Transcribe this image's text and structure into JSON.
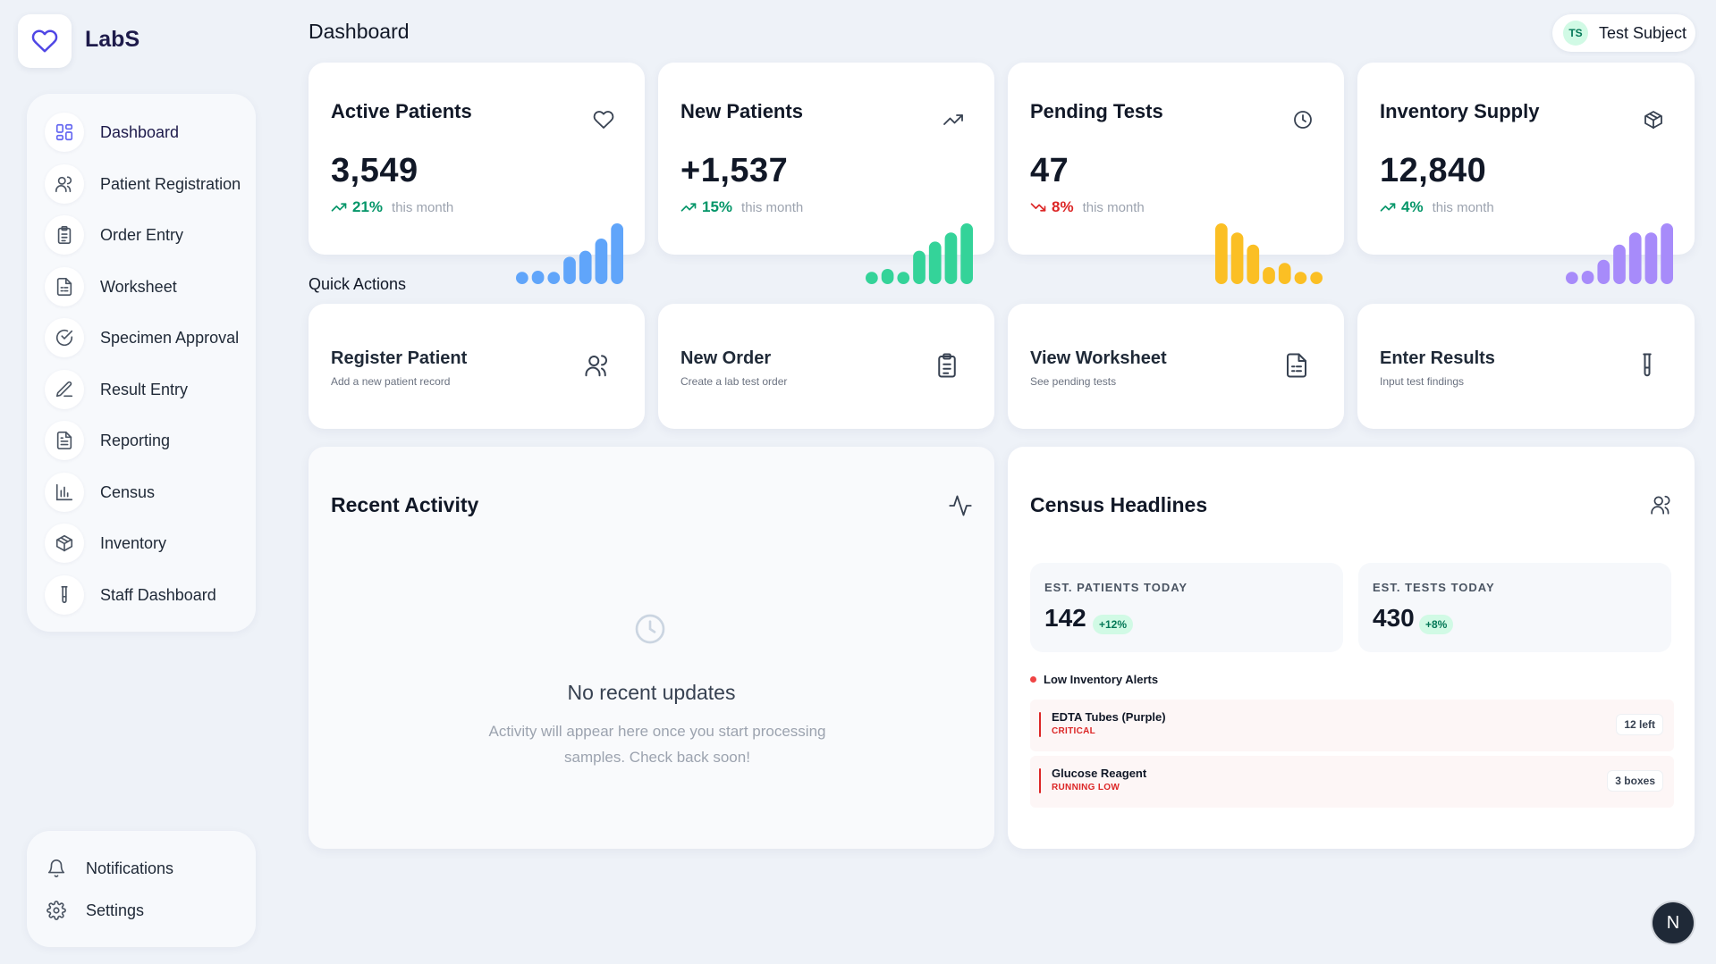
{
  "app": {
    "name": "LabS",
    "logo_icon": "heart-icon"
  },
  "page": {
    "title": "Dashboard"
  },
  "user": {
    "initials": "TS",
    "name": "Test Subject"
  },
  "sidebar": {
    "items": [
      {
        "label": "Dashboard",
        "icon": "grid-icon",
        "active": true
      },
      {
        "label": "Patient Registration",
        "icon": "users-icon"
      },
      {
        "label": "Order Entry",
        "icon": "clipboard-icon"
      },
      {
        "label": "Worksheet",
        "icon": "document-icon"
      },
      {
        "label": "Specimen Approval",
        "icon": "check-circle-icon"
      },
      {
        "label": "Result Entry",
        "icon": "pen-icon"
      },
      {
        "label": "Reporting",
        "icon": "report-icon"
      },
      {
        "label": "Census",
        "icon": "bar-chart-icon"
      },
      {
        "label": "Inventory",
        "icon": "box-icon"
      },
      {
        "label": "Staff Dashboard",
        "icon": "test-tube-icon"
      }
    ],
    "bottom": [
      {
        "label": "Notifications",
        "icon": "bell-icon"
      },
      {
        "label": "Settings",
        "icon": "gear-icon"
      }
    ]
  },
  "stats": [
    {
      "title": "Active Patients",
      "value": "3,549",
      "trend": "21%",
      "trend_dir": "up",
      "suffix": "this month",
      "icon": "heart-icon",
      "color": "#60a5fa",
      "bars": [
        0.12,
        0.22,
        0.1,
        0.45,
        0.55,
        0.75,
        1.0
      ]
    },
    {
      "title": "New Patients",
      "value": "+1,537",
      "trend": "15%",
      "trend_dir": "up",
      "suffix": "this month",
      "icon": "trending-up-icon",
      "color": "#34d399",
      "bars": [
        0.1,
        0.25,
        0.18,
        0.55,
        0.7,
        0.85,
        1.0
      ]
    },
    {
      "title": "Pending Tests",
      "value": "47",
      "trend": "8%",
      "trend_dir": "down",
      "suffix": "this month",
      "icon": "clock-icon",
      "color": "#fbbf24",
      "bars": [
        1.0,
        0.85,
        0.65,
        0.28,
        0.35,
        0.18,
        0.1
      ]
    },
    {
      "title": "Inventory Supply",
      "value": "12,840",
      "trend": "4%",
      "trend_dir": "up",
      "suffix": "this month",
      "icon": "box-icon",
      "color": "#a78bfa",
      "bars": [
        0.12,
        0.22,
        0.4,
        0.65,
        0.85,
        0.85,
        1.0
      ]
    }
  ],
  "quick_actions": {
    "label": "Quick Actions",
    "items": [
      {
        "title": "Register Patient",
        "subtitle": "Add a new patient record",
        "icon": "users-icon"
      },
      {
        "title": "New Order",
        "subtitle": "Create a lab test order",
        "icon": "clipboard-icon"
      },
      {
        "title": "View Worksheet",
        "subtitle": "See pending tests",
        "icon": "document-icon"
      },
      {
        "title": "Enter Results",
        "subtitle": "Input test findings",
        "icon": "test-tube-icon"
      }
    ]
  },
  "recent_activity": {
    "title": "Recent Activity",
    "icon": "activity-icon",
    "empty_title": "No recent updates",
    "empty_text": "Activity will appear here once you start processing samples. Check back soon!"
  },
  "census": {
    "title": "Census Headlines",
    "icon": "users-icon",
    "patients": {
      "label": "EST. PATIENTS TODAY",
      "value": "142",
      "badge": "+12%"
    },
    "tests": {
      "label": "EST. TESTS TODAY",
      "value": "430",
      "badge": "+8%"
    },
    "alerts_title": "Low Inventory Alerts",
    "alerts": [
      {
        "name": "EDTA Tubes (Purple)",
        "level": "CRITICAL",
        "qty": "12 left"
      },
      {
        "name": "Glucose Reagent",
        "level": "RUNNING LOW",
        "qty": "3 boxes"
      }
    ]
  },
  "fab": {
    "label": "N"
  },
  "colors": {
    "accent": "#6366f1",
    "up": "#059669",
    "down": "#dc2626"
  }
}
